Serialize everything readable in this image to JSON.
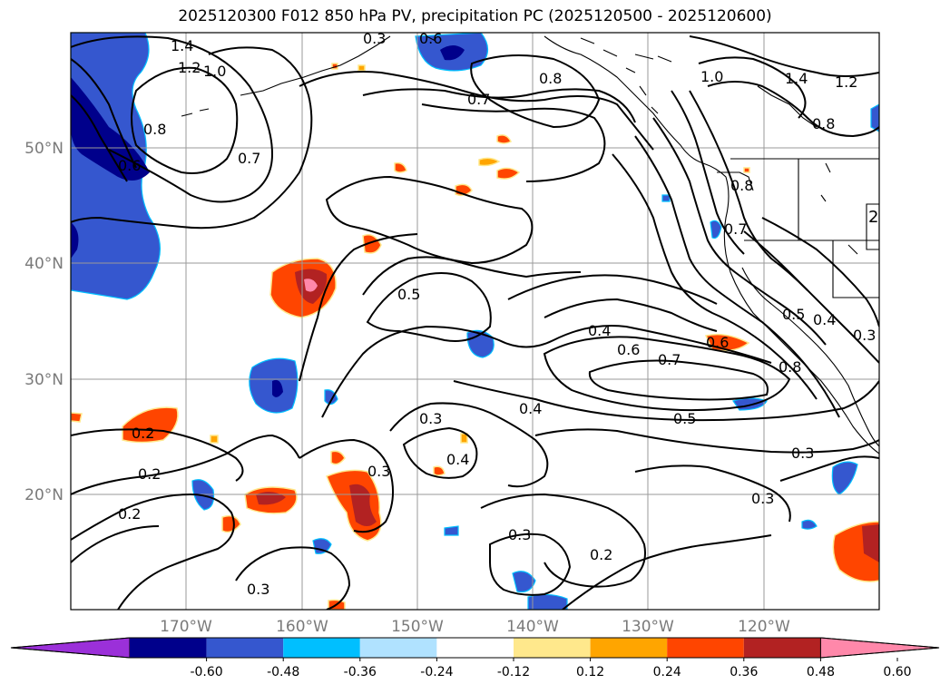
{
  "title": "2025120300 F012 850 hPa PV, precipitation PC (2025120500 - 2025120600)",
  "lat_labels": [
    "50°N",
    "40°N",
    "30°N",
    "20°N"
  ],
  "lon_labels": [
    "170°W",
    "160°W",
    "150°W",
    "140°W",
    "130°W",
    "120°W"
  ],
  "colorbar": {
    "colors": [
      "#9b30d9",
      "#00008b",
      "#3557cf",
      "#00bfff",
      "#b0e2ff",
      "#ffffff",
      "#ffe88c",
      "#ffa500",
      "#ff4500",
      "#b22222",
      "#ff88aa"
    ],
    "tick_labels": [
      "-0.60",
      "-0.48",
      "-0.36",
      "-0.24",
      "-0.12",
      "0.12",
      "0.24",
      "0.36",
      "0.48",
      "0.60"
    ]
  },
  "contour_labels": [
    {
      "text": "1.4"
    },
    {
      "text": "1.2"
    },
    {
      "text": "1.0"
    },
    {
      "text": "0.8"
    },
    {
      "text": "0.6"
    },
    {
      "text": "0.7"
    },
    {
      "text": "0.6"
    },
    {
      "text": "0.7"
    },
    {
      "text": "0.8"
    },
    {
      "text": "1.0"
    },
    {
      "text": "1.4"
    },
    {
      "text": "1.2"
    },
    {
      "text": "0.8"
    },
    {
      "text": "0.8"
    },
    {
      "text": "0.7"
    },
    {
      "text": "0.5"
    },
    {
      "text": "0.4"
    },
    {
      "text": "0.6"
    },
    {
      "text": "0.7"
    },
    {
      "text": "0.5"
    },
    {
      "text": "0.4"
    },
    {
      "text": "0.3"
    },
    {
      "text": "0.4"
    },
    {
      "text": "0.3"
    },
    {
      "text": "0.2"
    },
    {
      "text": "0.2"
    },
    {
      "text": "0.2"
    },
    {
      "text": "0.3"
    },
    {
      "text": "0.3"
    },
    {
      "text": "0.3"
    },
    {
      "text": "0.3"
    },
    {
      "text": "0.2"
    },
    {
      "text": "0.3"
    },
    {
      "text": "0.5"
    },
    {
      "text": "0.4"
    },
    {
      "text": "0.8"
    },
    {
      "text": "0.3"
    },
    {
      "text": "0.6"
    },
    {
      "text": "2"
    }
  ]
}
